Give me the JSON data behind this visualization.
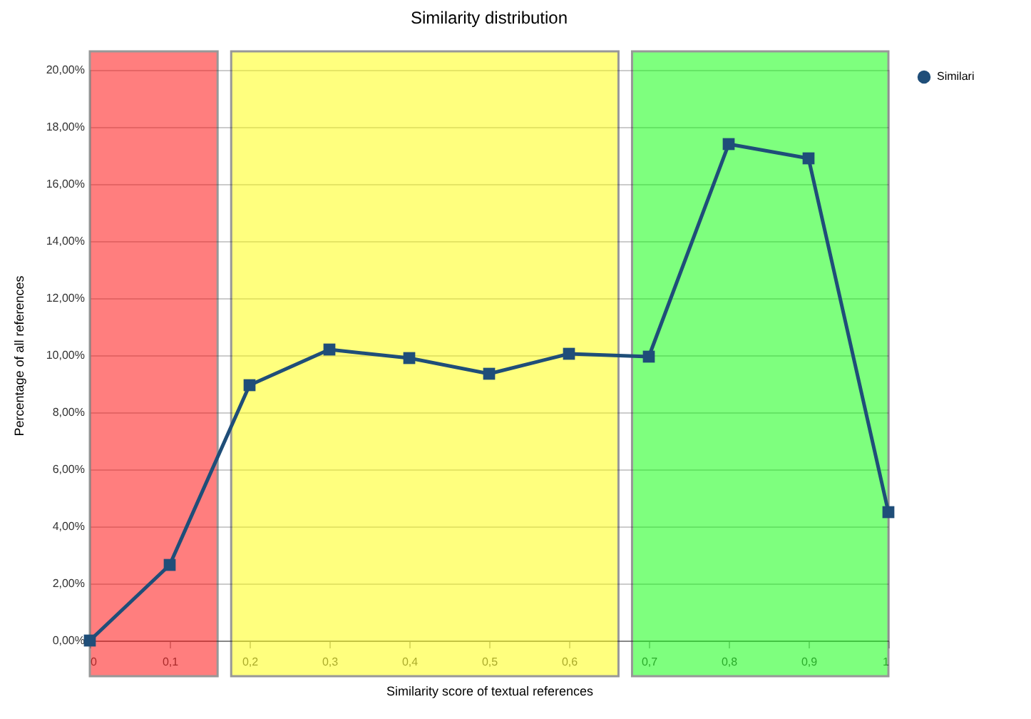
{
  "chart_data": {
    "type": "line",
    "title": "Similarity distribution",
    "xlabel": "Similarity score of textual references",
    "ylabel": "Percentage of all references",
    "x": [
      0,
      0.1,
      0.2,
      0.3,
      0.4,
      0.5,
      0.6,
      0.7,
      0.8,
      0.9,
      1
    ],
    "series": [
      {
        "name": "Similari",
        "color": "#1f4e79",
        "values": [
          0,
          2.65,
          8.95,
          10.2,
          9.9,
          9.35,
          10.05,
          9.95,
          17.4,
          16.9,
          4.5
        ]
      }
    ],
    "xlim": [
      0,
      1
    ],
    "xticks": [
      0,
      {
        "value": 0.1,
        "label": "0,1"
      },
      {
        "value": 0.2,
        "label": "0,2"
      },
      {
        "value": 0.3,
        "label": "0,3"
      },
      {
        "value": 0.4,
        "label": "0,4"
      },
      {
        "value": 0.5,
        "label": "0,5"
      },
      {
        "value": 0.6,
        "label": "0,6"
      },
      {
        "value": 0.7,
        "label": "0,7"
      },
      {
        "value": 0.8,
        "label": "0,8"
      },
      {
        "value": 0.9,
        "label": "0,9"
      },
      1
    ],
    "ylim": [
      0,
      20
    ],
    "yticks": [
      {
        "value": 0,
        "label": "0,00%"
      },
      {
        "value": 2,
        "label": "2,00%"
      },
      {
        "value": 4,
        "label": "4,00%"
      },
      {
        "value": 6,
        "label": "6,00%"
      },
      {
        "value": 8,
        "label": "8,00%"
      },
      {
        "value": 10,
        "label": "10,00%"
      },
      {
        "value": 12,
        "label": "12,00%"
      },
      {
        "value": 14,
        "label": "14,00%"
      },
      {
        "value": 16,
        "label": "16,00%"
      },
      {
        "value": 18,
        "label": "18,00%"
      },
      {
        "value": 20,
        "label": "20,00%"
      }
    ],
    "bands": [
      {
        "axis": "x",
        "from": 0,
        "to": 0.16,
        "color": "#ff0000"
      },
      {
        "axis": "x",
        "from": 0.177,
        "to": 0.662,
        "color": "#ffff00"
      },
      {
        "axis": "x",
        "from": 0.679,
        "to": 1,
        "color": "#00ff00"
      }
    ],
    "grid": "y",
    "legend": "right",
    "marker": "square",
    "line_style": "solid"
  }
}
